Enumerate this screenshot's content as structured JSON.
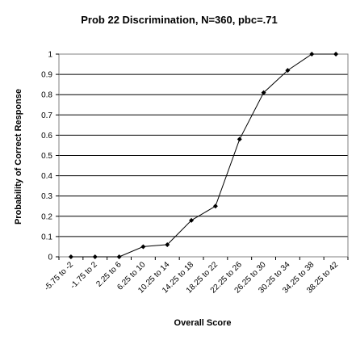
{
  "chart_data": {
    "type": "line",
    "title": "Prob 22 Discrimination, N=360, pbc=.71",
    "xlabel": "Overall Score",
    "ylabel": "Probability of Correct Response",
    "categories": [
      "-5.75 to -2",
      "-1.75 to 2",
      "2.25 to 6",
      "6.25 to 10",
      "10.25 to 14",
      "14.25 to 18",
      "18.25 to 22",
      "22.25 to 26",
      "26.25 to 30",
      "30.25 to 34",
      "34.25 to 38",
      "38.25 to 42"
    ],
    "series": [
      {
        "values": [
          0,
          0,
          0,
          0.05,
          0.06,
          0.18,
          0.25,
          0.58,
          0.81,
          0.92,
          1.0,
          1.0
        ]
      }
    ],
    "ylim": [
      0,
      1
    ],
    "yticks": [
      "0",
      "0.1",
      "0.2",
      "0.3",
      "0.4",
      "0.5",
      "0.6",
      "0.7",
      "0.8",
      "0.9",
      "1"
    ],
    "grid": true,
    "legend": "none",
    "colors": {
      "line": "#000000",
      "marker": "#000000",
      "grid": "#000000",
      "frame": "#808080"
    }
  }
}
